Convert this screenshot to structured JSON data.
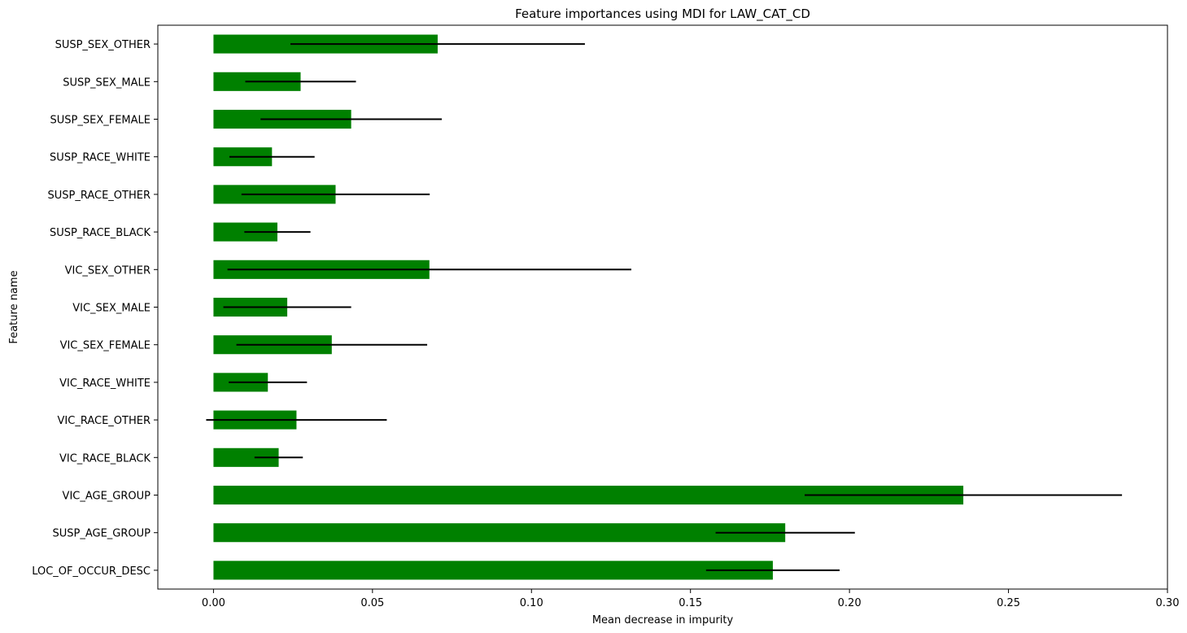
{
  "chart_data": {
    "type": "bar",
    "orientation": "horizontal",
    "title": "Feature importances using MDI for LAW_CAT_CD",
    "xlabel": "Mean decrease in impurity",
    "ylabel": "Feature name",
    "xlim": [
      -0.0175,
      0.3
    ],
    "xticks": [
      0.0,
      0.05,
      0.1,
      0.15,
      0.2,
      0.25,
      0.3
    ],
    "xtick_labels": [
      "0.00",
      "0.05",
      "0.10",
      "0.15",
      "0.20",
      "0.25",
      "0.30"
    ],
    "grid": false,
    "bar_color": "#008000",
    "error_color": "#000000",
    "categories": [
      "SUSP_SEX_OTHER",
      "SUSP_SEX_MALE",
      "SUSP_SEX_FEMALE",
      "SUSP_RACE_WHITE",
      "SUSP_RACE_OTHER",
      "SUSP_RACE_BLACK",
      "VIC_SEX_OTHER",
      "VIC_SEX_MALE",
      "VIC_SEX_FEMALE",
      "VIC_RACE_WHITE",
      "VIC_RACE_OTHER",
      "VIC_RACE_BLACK",
      "VIC_AGE_GROUP",
      "SUSP_AGE_GROUP",
      "LOC_OF_OCCUR_DESC"
    ],
    "values": [
      0.0705,
      0.0274,
      0.0433,
      0.0184,
      0.0384,
      0.0201,
      0.0679,
      0.0232,
      0.0372,
      0.0171,
      0.0261,
      0.0205,
      0.2358,
      0.1798,
      0.1759
    ],
    "errors": [
      0.0463,
      0.0174,
      0.0285,
      0.0134,
      0.0296,
      0.0104,
      0.0635,
      0.0201,
      0.03,
      0.0123,
      0.0284,
      0.0076,
      0.0499,
      0.0219,
      0.021
    ]
  }
}
